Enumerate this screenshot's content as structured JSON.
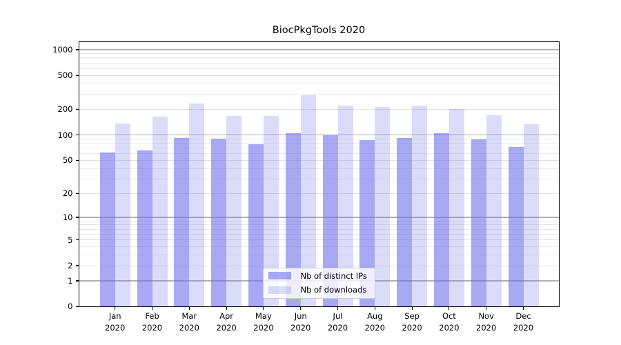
{
  "figure": {
    "title": "BiocPkgTools 2020",
    "background_color": "#ffffff"
  },
  "chart_data": {
    "type": "bar",
    "title": "BiocPkgTools 2020",
    "categories": [
      "Jan",
      "Feb",
      "Mar",
      "Apr",
      "May",
      "Jun",
      "Jul",
      "Aug",
      "Sep",
      "Oct",
      "Nov",
      "Dec"
    ],
    "category_year_suffix": "2020",
    "series": [
      {
        "name": "Nb of distinct IPs",
        "color": "rgba(112,112,235,0.6)",
        "values": [
          62,
          66,
          92,
          91,
          78,
          104,
          100,
          87,
          92,
          105,
          88,
          72
        ]
      },
      {
        "name": "Nb of downloads",
        "color": "rgba(112,112,235,0.25)",
        "values": [
          136,
          165,
          234,
          167,
          167,
          292,
          220,
          212,
          223,
          201,
          172,
          133
        ]
      }
    ],
    "y_axis": {
      "scale": "log1p",
      "tick_values": [
        0,
        1,
        2,
        5,
        10,
        20,
        50,
        100,
        200,
        500,
        1000
      ],
      "tick_labels": [
        "0",
        "1",
        "2",
        "5",
        "10",
        "20",
        "50",
        "100",
        "200",
        "500",
        "1000"
      ],
      "major_gridline_values": [
        1,
        10,
        100,
        1000
      ],
      "ylim": [
        0,
        1237
      ]
    },
    "xlabel": "",
    "ylabel": "",
    "grid": {
      "enabled": "both",
      "major_color": "#b0b0b0",
      "minor_color": "#e9e9e9",
      "labeled_minor_color": "#e1e1e1"
    },
    "legend": {
      "position": "lower center",
      "background": "rgba(255,255,255,0.8)",
      "border_color": "#cccccc"
    },
    "spine_color": "#000000"
  }
}
